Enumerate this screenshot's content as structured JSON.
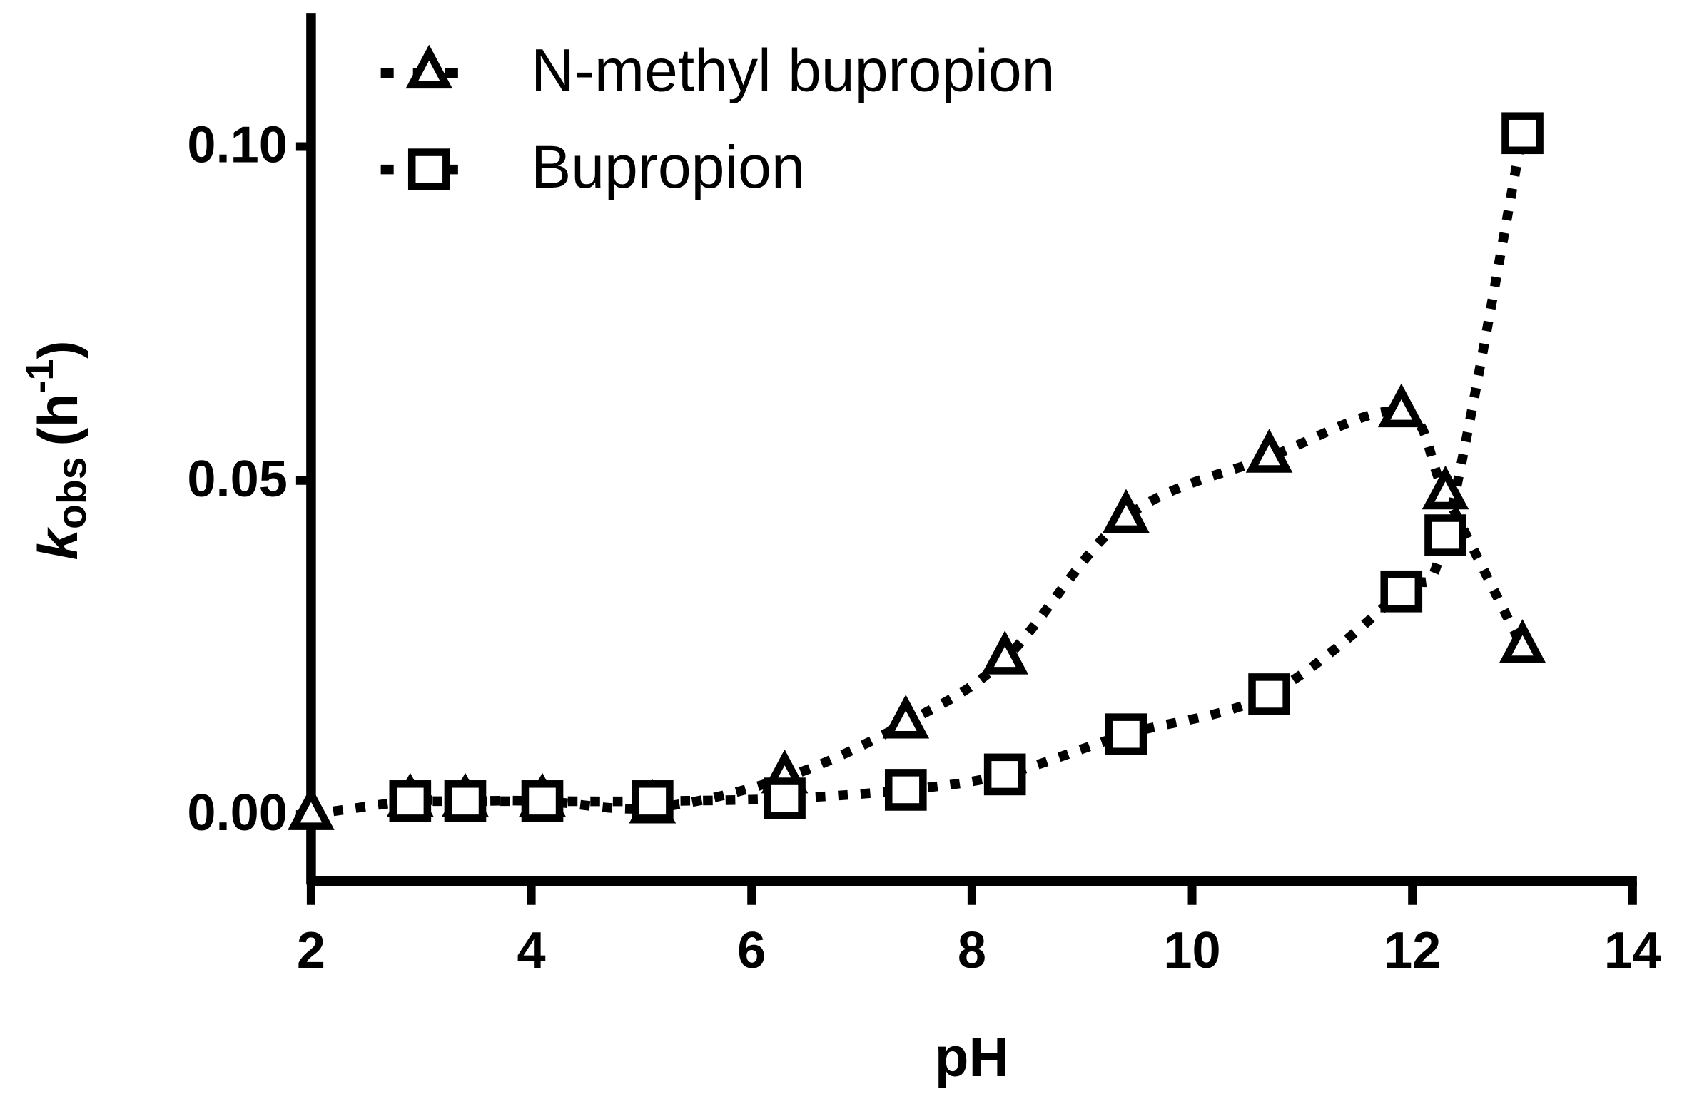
{
  "chart_data": {
    "type": "line",
    "x_label": "pH",
    "y_label": {
      "symbol": "k",
      "subscript": "obs",
      "unit_open": "(h",
      "superscript": "-1",
      "unit_close": ")"
    },
    "xlim": [
      2,
      14
    ],
    "xticks": [
      2,
      4,
      6,
      8,
      10,
      12,
      14
    ],
    "ylim": [
      -0.01,
      0.12
    ],
    "yticks": [
      {
        "value": 0,
        "label": "0.00"
      },
      {
        "value": 0.05,
        "label": "0.05"
      },
      {
        "value": 0.1,
        "label": "0.10"
      }
    ],
    "legend": "upper left",
    "series": [
      {
        "name": "N-methyl bupropion",
        "color": "#000000",
        "marker": "triangle",
        "x": [
          2,
          2.9,
          3.4,
          4.1,
          5.1,
          6.3,
          7.4,
          8.3,
          9.4,
          10.7,
          11.9,
          12.3,
          13.0
        ],
        "values": [
          0.0,
          0.002,
          0.002,
          0.002,
          0.001,
          0.0055,
          0.0137,
          0.0233,
          0.0445,
          0.0535,
          0.0603,
          0.048,
          0.025
        ]
      },
      {
        "name": "Bupropion",
        "color": "#000000",
        "marker": "square",
        "x": [
          2.9,
          3.4,
          4.1,
          5.1,
          6.3,
          7.4,
          8.3,
          9.4,
          10.7,
          11.9,
          12.3,
          13.0
        ],
        "values": [
          0.002,
          0.002,
          0.002,
          0.002,
          0.0024,
          0.0037,
          0.006,
          0.012,
          0.018,
          0.0334,
          0.0418,
          0.102
        ]
      }
    ]
  }
}
